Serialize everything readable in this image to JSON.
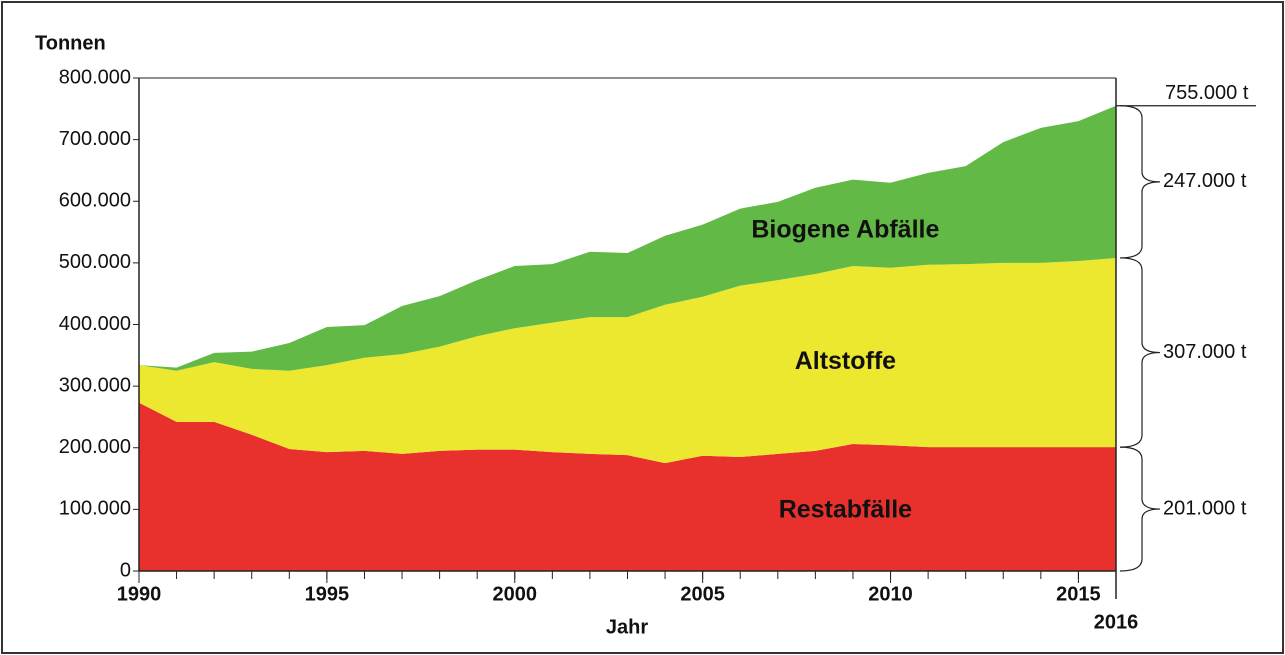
{
  "chart_data": {
    "type": "stacked-area",
    "y_label": "Tonnen",
    "x_label": "Jahr",
    "x": [
      1990,
      1991,
      1992,
      1993,
      1994,
      1995,
      1996,
      1997,
      1998,
      1999,
      2000,
      2001,
      2002,
      2003,
      2004,
      2005,
      2006,
      2007,
      2008,
      2009,
      2010,
      2011,
      2012,
      2013,
      2014,
      2015,
      2016
    ],
    "series": [
      {
        "name": "Restabfälle",
        "color": "#e8312c",
        "values": [
          273000,
          242000,
          242000,
          221000,
          198000,
          193000,
          195000,
          190000,
          195000,
          197000,
          197000,
          193000,
          190000,
          188000,
          175000,
          187000,
          185000,
          190000,
          195000,
          206000,
          204000,
          201000,
          201000,
          201000,
          201000,
          201000,
          201000
        ]
      },
      {
        "name": "Altstoffe",
        "color": "#ece82f",
        "values": [
          61000,
          83000,
          97000,
          107000,
          127000,
          141000,
          151000,
          162000,
          169000,
          184000,
          197000,
          210000,
          222000,
          224000,
          257000,
          258000,
          278000,
          282000,
          287000,
          289000,
          288000,
          296000,
          297000,
          299000,
          299000,
          302000,
          307000
        ]
      },
      {
        "name": "Biogene Abfälle",
        "color": "#62b946",
        "values": [
          0,
          5000,
          15000,
          28000,
          45000,
          62000,
          53000,
          78000,
          82000,
          91000,
          101000,
          95000,
          106000,
          104000,
          112000,
          117000,
          125000,
          127000,
          140000,
          140000,
          138000,
          149000,
          159000,
          196000,
          219000,
          227000,
          247000
        ]
      }
    ],
    "annotations": [
      "755.000 t",
      "247.000 t",
      "307.000 t",
      "201.000 t"
    ],
    "xlim": [
      1990,
      2016
    ],
    "xticks": [
      1990,
      1995,
      2000,
      2005,
      2010,
      2015,
      2016
    ],
    "ylim": [
      0,
      800000
    ],
    "yticks": [
      0,
      {
        "value": 100000,
        "label": "100.000"
      },
      {
        "value": 200000,
        "label": "200.000"
      },
      {
        "value": 300000,
        "label": "300.000"
      },
      {
        "value": 400000,
        "label": "400.000"
      },
      {
        "value": 500000,
        "label": "500.000"
      },
      {
        "value": 600000,
        "label": "600.000"
      },
      {
        "value": 700000,
        "label": "700.000"
      },
      {
        "value": 800000,
        "label": "800.000"
      }
    ]
  }
}
